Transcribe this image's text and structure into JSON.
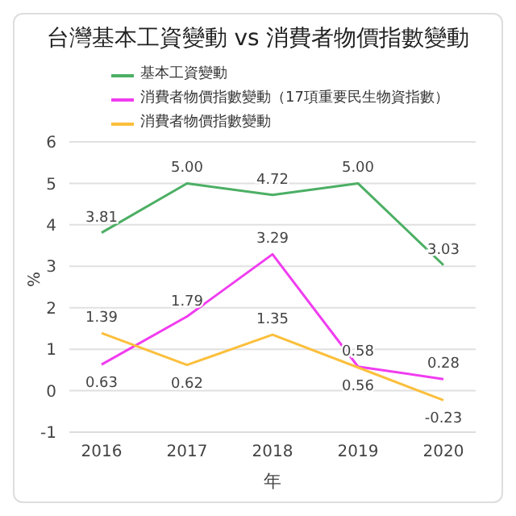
{
  "chart_data": {
    "type": "line",
    "title": "台灣基本工資變動 vs 消費者物價指數變動",
    "xlabel": "年",
    "ylabel": "%",
    "categories": [
      "2016",
      "2017",
      "2018",
      "2019",
      "2020"
    ],
    "series": [
      {
        "name": "基本工資變動",
        "color": "#4caf64",
        "values": [
          3.81,
          5.0,
          4.72,
          5.0,
          3.03
        ],
        "value_labels": [
          "3.81",
          "5.00",
          "4.72",
          "5.00",
          "3.03"
        ]
      },
      {
        "name": "消費者物價指數變動（17項重要民生物資指數）",
        "color": "#f03cf0",
        "values": [
          0.63,
          1.79,
          3.29,
          0.58,
          0.28
        ],
        "value_labels": [
          "0.63",
          "1.79",
          "3.29",
          "0.58",
          "0.28"
        ]
      },
      {
        "name": "消費者物價指數變動",
        "color": "#fbbf3c",
        "values": [
          1.39,
          0.62,
          1.35,
          0.56,
          -0.23
        ],
        "value_labels": [
          "1.39",
          "0.62",
          "1.35",
          "0.56",
          "-0.23"
        ]
      }
    ],
    "ylim": [
      -1,
      6
    ],
    "yticks": [
      -1,
      0,
      1,
      2,
      3,
      4,
      5,
      6
    ],
    "grid": "y",
    "legend": "top left",
    "marker": "none",
    "line_style": "solid"
  }
}
